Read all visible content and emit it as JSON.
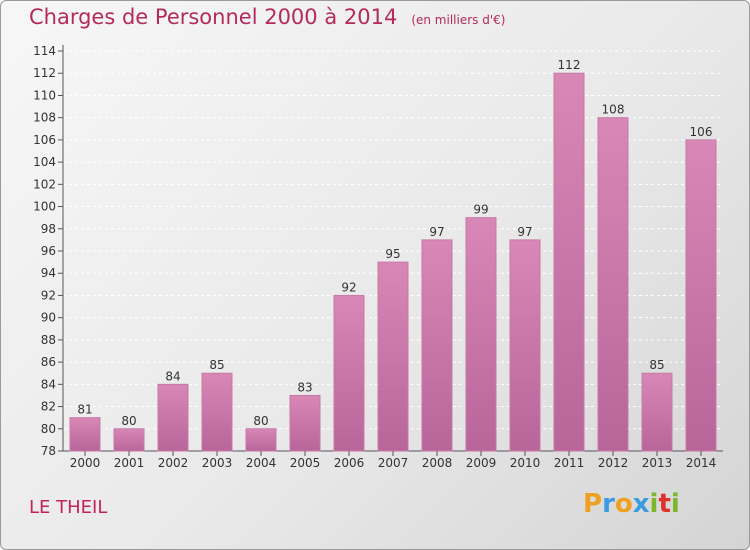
{
  "title": "Charges de Personnel 2000 à 2014",
  "subtitle": "(en milliers d'€)",
  "place": "LE THEIL",
  "logo": {
    "letters": [
      "P",
      "r",
      "o",
      "x",
      "i",
      "t",
      "i"
    ],
    "colors": [
      "#f0a020",
      "#3a9be0",
      "#f0a020",
      "#3a9be0",
      "#7ab82a",
      "#e0302a",
      "#7ab82a"
    ]
  },
  "colors": {
    "bar": "#d987b6",
    "bar_dark": "#b8669a",
    "text": "#b42a5c"
  },
  "chart_data": {
    "type": "bar",
    "categories": [
      "2000",
      "2001",
      "2002",
      "2003",
      "2004",
      "2005",
      "2006",
      "2007",
      "2008",
      "2009",
      "2010",
      "2011",
      "2012",
      "2013",
      "2014"
    ],
    "values": [
      81,
      80,
      84,
      85,
      80,
      83,
      92,
      95,
      97,
      99,
      97,
      112,
      108,
      85,
      106
    ],
    "ylim": [
      78,
      114
    ],
    "yticks": [
      78,
      80,
      82,
      84,
      86,
      88,
      90,
      92,
      94,
      96,
      98,
      100,
      102,
      104,
      106,
      108,
      110,
      112,
      114
    ],
    "grid": true,
    "title": "Charges de Personnel 2000 à 2014",
    "xlabel": "",
    "ylabel": ""
  }
}
